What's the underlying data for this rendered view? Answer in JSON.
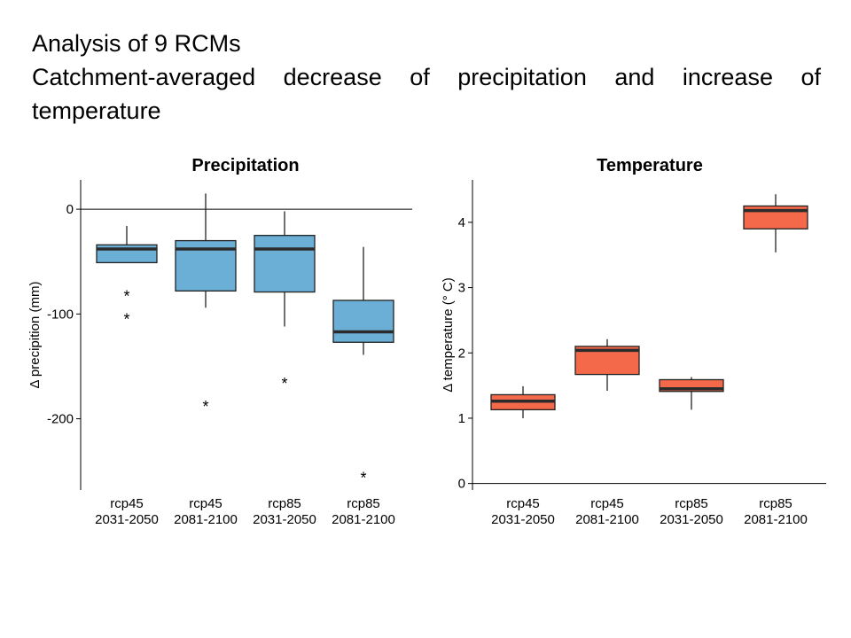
{
  "heading": {
    "line1": "Analysis of 9 RCMs",
    "line2": "Catchment-averaged decrease of precipitation and increase of",
    "line3": "temperature"
  },
  "chart_data": [
    {
      "type": "boxplot",
      "title": "Precipitation",
      "ylabel": "Δ precipition (mm)",
      "ylim": [
        -268,
        28
      ],
      "yticks": [
        0,
        -100,
        -200
      ],
      "zero_line": true,
      "box_color": "#6baed6",
      "categories": [
        [
          "rcp45",
          "2031-2050"
        ],
        [
          "rcp45",
          "2081-2100"
        ],
        [
          "rcp85",
          "2031-2050"
        ],
        [
          "rcp85",
          "2081-2100"
        ]
      ],
      "boxes": [
        {
          "whisker_low": -51,
          "q1": -51,
          "median": -38,
          "q3": -34,
          "whisker_high": -16,
          "outliers": [
            -80,
            -102
          ]
        },
        {
          "whisker_low": -94,
          "q1": -78,
          "median": -38,
          "q3": -30,
          "whisker_high": 15,
          "outliers": [
            -185
          ]
        },
        {
          "whisker_low": -112,
          "q1": -79,
          "median": -38,
          "q3": -25,
          "whisker_high": -2,
          "outliers": [
            -163
          ]
        },
        {
          "whisker_low": -139,
          "q1": -127,
          "median": -117,
          "q3": -87,
          "whisker_high": -36,
          "outliers": [
            -253
          ]
        }
      ]
    },
    {
      "type": "boxplot",
      "title": "Temperature",
      "ylabel": "Δ temperature (° C)",
      "ylim": [
        -0.1,
        4.65
      ],
      "yticks": [
        0,
        1,
        2,
        3,
        4
      ],
      "zero_line": false,
      "box_color": "#f4694a",
      "categories": [
        [
          "rcp45",
          "2031-2050"
        ],
        [
          "rcp45",
          "2081-2100"
        ],
        [
          "rcp85",
          "2031-2050"
        ],
        [
          "rcp85",
          "2081-2100"
        ]
      ],
      "boxes": [
        {
          "whisker_low": 1.0,
          "q1": 1.13,
          "median": 1.26,
          "q3": 1.36,
          "whisker_high": 1.49,
          "outliers": []
        },
        {
          "whisker_low": 1.42,
          "q1": 1.67,
          "median": 2.04,
          "q3": 2.1,
          "whisker_high": 2.21,
          "outliers": []
        },
        {
          "whisker_low": 1.13,
          "q1": 1.41,
          "median": 1.45,
          "q3": 1.59,
          "whisker_high": 1.63,
          "outliers": []
        },
        {
          "whisker_low": 3.54,
          "q1": 3.9,
          "median": 4.18,
          "q3": 4.25,
          "whisker_high": 4.43,
          "outliers": []
        }
      ]
    }
  ]
}
